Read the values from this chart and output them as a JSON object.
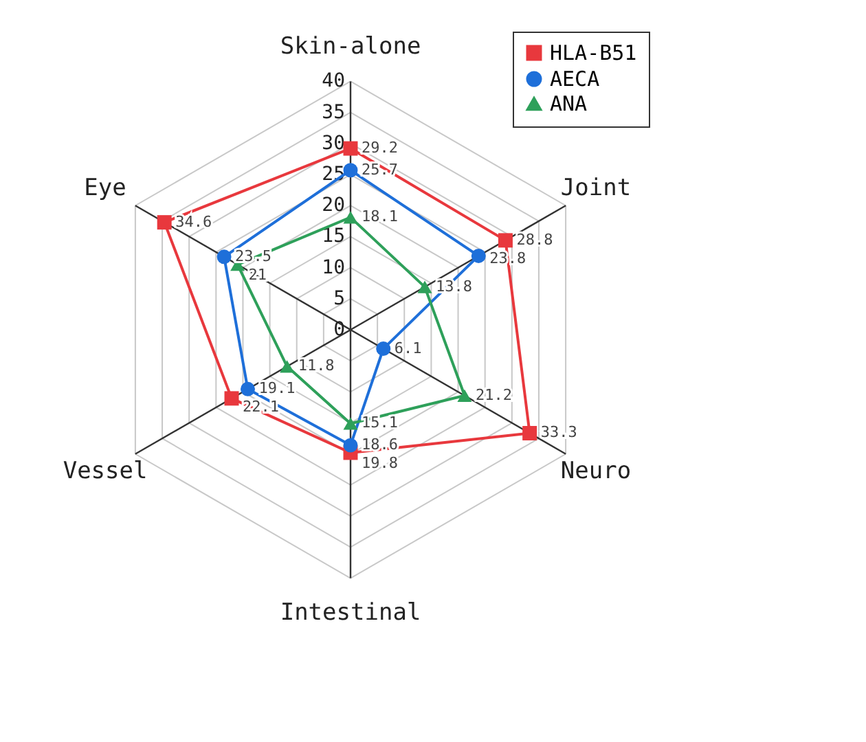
{
  "chart_data": {
    "type": "radar",
    "categories": [
      "Skin-alone",
      "Joint",
      "Neuro",
      "Intestinal",
      "Vessel",
      "Eye"
    ],
    "ylim": [
      0,
      40
    ],
    "yticks": [
      0,
      5,
      10,
      15,
      20,
      25,
      30,
      35,
      40
    ],
    "grid": true,
    "legend": "top right",
    "data_labels": true,
    "series": [
      {
        "name": "HLA-B51",
        "color": "#e8383d",
        "marker": "square",
        "values": [
          29.2,
          28.8,
          33.3,
          19.8,
          22.1,
          34.6
        ]
      },
      {
        "name": "AECA",
        "color": "#1e6fd9",
        "marker": "circle",
        "values": [
          25.7,
          23.8,
          6.1,
          18.6,
          19.1,
          23.5
        ]
      },
      {
        "name": "ANA",
        "color": "#2ea05a",
        "marker": "triangle",
        "values": [
          18.1,
          13.8,
          21.2,
          15.1,
          11.8,
          21
        ]
      }
    ]
  }
}
